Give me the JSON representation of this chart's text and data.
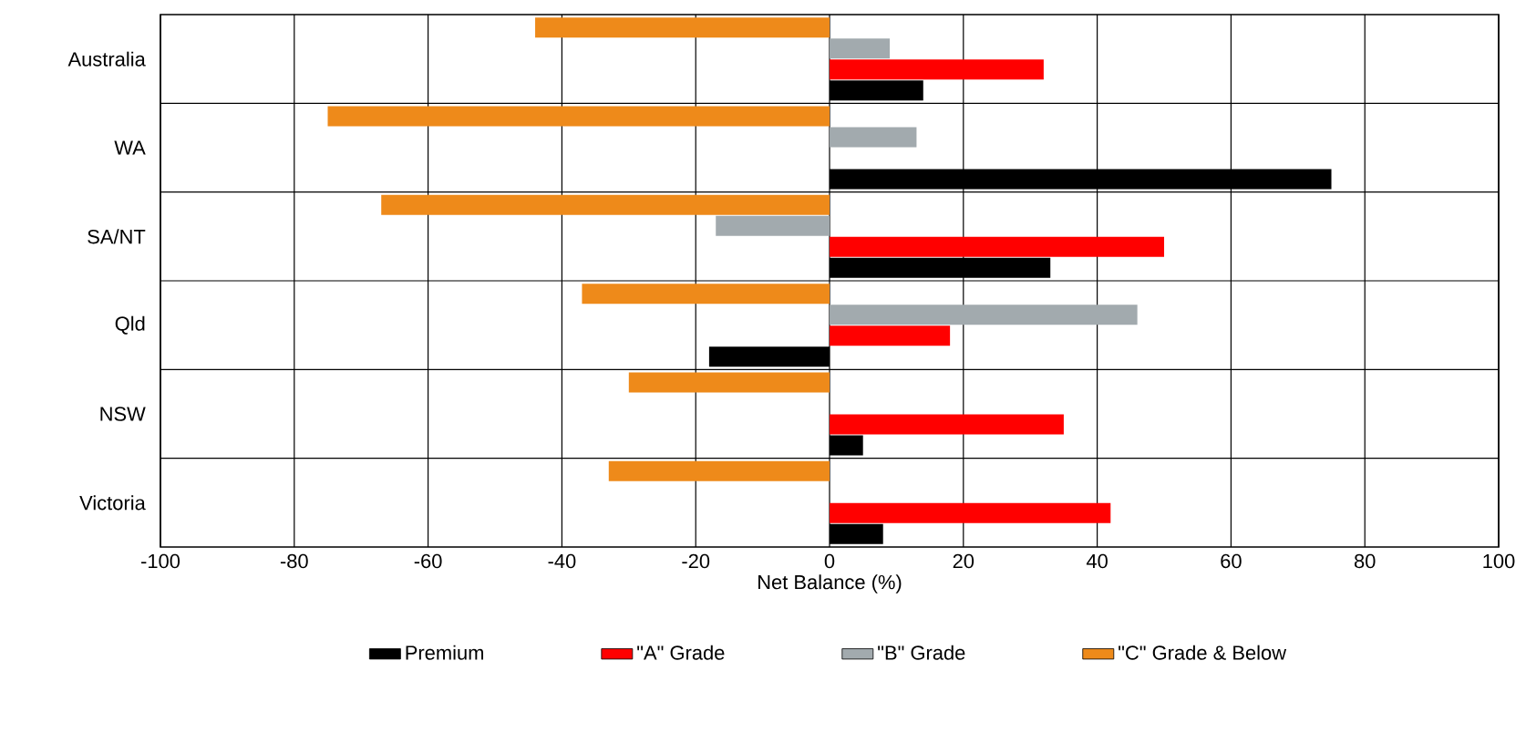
{
  "chart_data": {
    "type": "bar",
    "orientation": "horizontal",
    "xlabel": "Net Balance (%)",
    "categories": [
      "Australia",
      "WA",
      "SA/NT",
      "Qld",
      "NSW",
      "Victoria"
    ],
    "series": [
      {
        "name": "Premium",
        "color": "#000000",
        "values": [
          14,
          75,
          33,
          -18,
          5,
          8
        ]
      },
      {
        "name": "\"A\" Grade",
        "color": "#ff0000",
        "values": [
          32,
          null,
          50,
          18,
          35,
          42
        ]
      },
      {
        "name": "\"B\" Grade",
        "color": "#a2aaae",
        "values": [
          9,
          13,
          -17,
          46,
          null,
          null
        ]
      },
      {
        "name": "\"C\" Grade & Below",
        "color": "#ee8a1a",
        "values": [
          -44,
          -75,
          -67,
          -37,
          -30,
          -33
        ]
      }
    ],
    "xlim": [
      -100,
      100
    ],
    "xticks": [
      -100,
      -80,
      -60,
      -40,
      -20,
      0,
      20,
      40,
      60,
      80,
      100
    ],
    "grid": true,
    "legend": "bottom"
  }
}
